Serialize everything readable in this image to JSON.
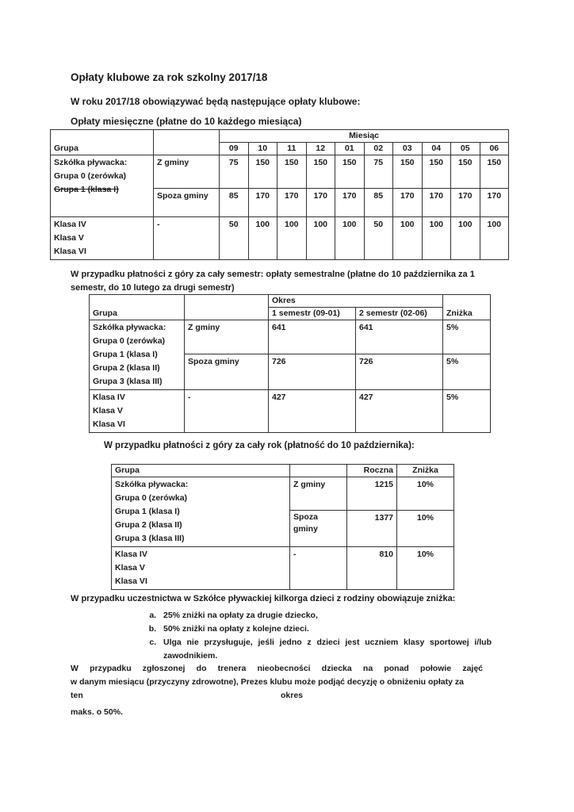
{
  "title": "Opłaty klubowe za rok szkolny 2017/18",
  "intro": "W roku 2017/18 obowiązywać będą następujące opłaty klubowe:",
  "monthly": {
    "heading": "Opłaty miesięczne (płatne do 10 każdego miesiąca)",
    "group_header": "Grupa",
    "month_header": "Miesiąc",
    "months": [
      "09",
      "10",
      "11",
      "12",
      "01",
      "02",
      "03",
      "04",
      "05",
      "06"
    ],
    "group1_lines": [
      "Szkółka pływacka:",
      "Grupa 0 (zerówka)",
      "Grupa 1 (klasa I)"
    ],
    "group2_lines": [
      "Klasa IV",
      "Klasa V",
      "Klasa VI"
    ],
    "rows": [
      {
        "type": "Z gminy",
        "values": [
          "75",
          "150",
          "150",
          "150",
          "150",
          "75",
          "150",
          "150",
          "150",
          "150"
        ]
      },
      {
        "type": "Spoza gminy",
        "values": [
          "85",
          "170",
          "170",
          "170",
          "170",
          "85",
          "170",
          "170",
          "170",
          "170"
        ]
      },
      {
        "type": "-",
        "values": [
          "50",
          "100",
          "100",
          "100",
          "100",
          "50",
          "100",
          "100",
          "100",
          "100"
        ]
      }
    ]
  },
  "semester": {
    "heading_line1": "W przypadku płatności z góry za cały semestr: opłaty semestralne (płatne do 10 października za 1",
    "heading_line2": "semestr, do 10 lutego za drugi semestr)",
    "group_header": "Grupa",
    "period_header": "Okres",
    "sem1": "1 semestr (09-01)",
    "sem2": "2 semestr (02-06)",
    "discount_header": "Zniżka",
    "group1_lines": [
      "Szkółka pływacka:",
      "Grupa 0 (zerówka)",
      "Grupa 1 (klasa I)",
      "Grupa 2 (klasa II)",
      "Grupa 3 (klasa III)"
    ],
    "group2_lines": [
      "Klasa IV",
      "Klasa V",
      "Klasa VI"
    ],
    "rows": [
      {
        "type": "Z gminy",
        "s1": "641",
        "s2": "641",
        "discount": "5%"
      },
      {
        "type": "Spoza gminy",
        "s1": "726",
        "s2": "726",
        "discount": "5%"
      },
      {
        "type": "-",
        "s1": "427",
        "s2": "427",
        "discount": "5%"
      }
    ]
  },
  "yearly": {
    "heading": "W przypadku płatności z góry za cały rok (płatność do 10 października):",
    "group_header": "Grupa",
    "annual_header": "Roczna",
    "discount_header": "Zniżka",
    "group1_lines": [
      "Szkółka pływacka:",
      "Grupa 0 (zerówka)",
      "Grupa 1 (klasa I)",
      "Grupa 2 (klasa II)",
      "Grupa 3 (klasa III)"
    ],
    "group2_lines": [
      "Klasa IV",
      "Klasa V",
      "Klasa VI"
    ],
    "rows": [
      {
        "type": "Z gminy",
        "annual": "1215",
        "discount": "10%"
      },
      {
        "type": "Spoza gminy",
        "annual": "1377",
        "discount": "10%"
      },
      {
        "type": "-",
        "annual": "810",
        "discount": "10%"
      }
    ]
  },
  "siblings": {
    "heading": "W przypadku uczestnictwa w Szkółce pływackiej kilkorga dzieci z rodziny obowiązuje zniżka:",
    "items": [
      "25% zniżki na opłaty za drugie dziecko,",
      "50% zniżki na opłaty z kolejne dzieci.",
      "Ulga nie przysługuje, jeśli jedno z dzieci jest uczniem klasy sportowej i/lub zawodnikiem."
    ]
  },
  "absence": {
    "line1": "W przypadku zgłoszonej do trenera nieobecności dziecka na ponad połowie zajęć",
    "line2": "w danym miesiącu (przyczyny zdrowotne), Prezes klubu może podjąć decyzję o obniżeniu opłaty za",
    "line3a": "ten",
    "line3b": "okres",
    "line4": "maks. o 50%."
  }
}
